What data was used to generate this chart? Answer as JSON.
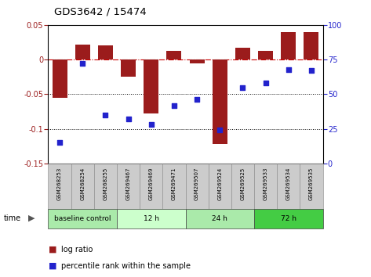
{
  "title": "GDS3642 / 15474",
  "samples": [
    "GSM268253",
    "GSM268254",
    "GSM268255",
    "GSM269467",
    "GSM269469",
    "GSM269471",
    "GSM269507",
    "GSM269524",
    "GSM269525",
    "GSM269533",
    "GSM269534",
    "GSM269535"
  ],
  "log_ratio": [
    -0.055,
    0.022,
    0.02,
    -0.025,
    -0.078,
    0.013,
    -0.005,
    -0.122,
    0.017,
    0.012,
    0.04,
    0.04
  ],
  "percentile_rank": [
    15,
    72,
    35,
    32,
    28,
    42,
    46,
    24,
    55,
    58,
    68,
    67
  ],
  "bar_color": "#9B1C1C",
  "dot_color": "#2222CC",
  "ylim_left": [
    -0.15,
    0.05
  ],
  "yticks_left": [
    -0.15,
    -0.1,
    -0.05,
    0,
    0.05
  ],
  "ylim_right": [
    0,
    100
  ],
  "yticks_right": [
    0,
    25,
    50,
    75,
    100
  ],
  "groups": [
    {
      "label": "baseline control",
      "start": 0,
      "end": 3,
      "color": "#AAEAAA"
    },
    {
      "label": "12 h",
      "start": 3,
      "end": 6,
      "color": "#CCFFCC"
    },
    {
      "label": "24 h",
      "start": 6,
      "end": 9,
      "color": "#AAEAAA"
    },
    {
      "label": "72 h",
      "start": 9,
      "end": 12,
      "color": "#44CC44"
    }
  ],
  "legend_bar_label": "log ratio",
  "legend_dot_label": "percentile rank within the sample",
  "hline_color": "#CC0000",
  "plot_bg": "#FFFFFF"
}
